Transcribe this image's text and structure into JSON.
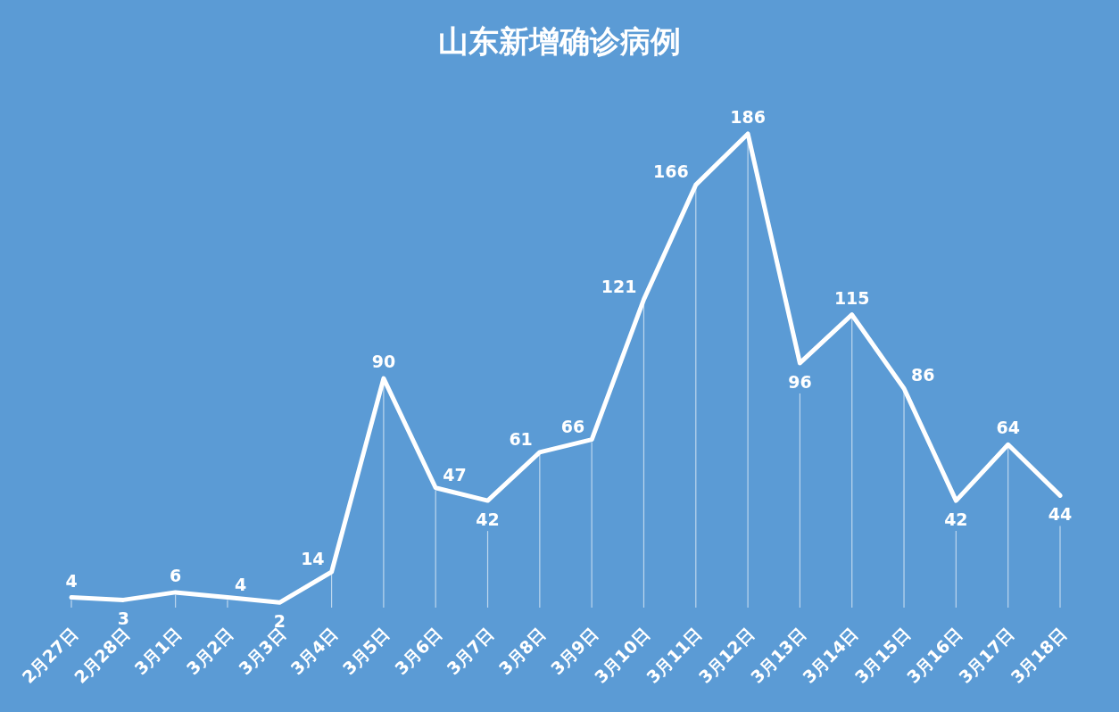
{
  "chart_data": {
    "type": "line",
    "title": "山东新增确诊病例",
    "categories": [
      "2月27日",
      "2月28日",
      "3月1日",
      "3月2日",
      "3月3日",
      "3月4日",
      "3月5日",
      "3月6日",
      "3月7日",
      "3月8日",
      "3月9日",
      "3月10日",
      "3月11日",
      "3月12日",
      "3月13日",
      "3月14日",
      "3月15日",
      "3月16日",
      "3月17日",
      "3月18日"
    ],
    "values": [
      4,
      3,
      6,
      4,
      2,
      14,
      90,
      47,
      42,
      61,
      66,
      121,
      166,
      186,
      96,
      115,
      86,
      42,
      64,
      44
    ],
    "color": "#ffffff",
    "data_labels": true
  }
}
